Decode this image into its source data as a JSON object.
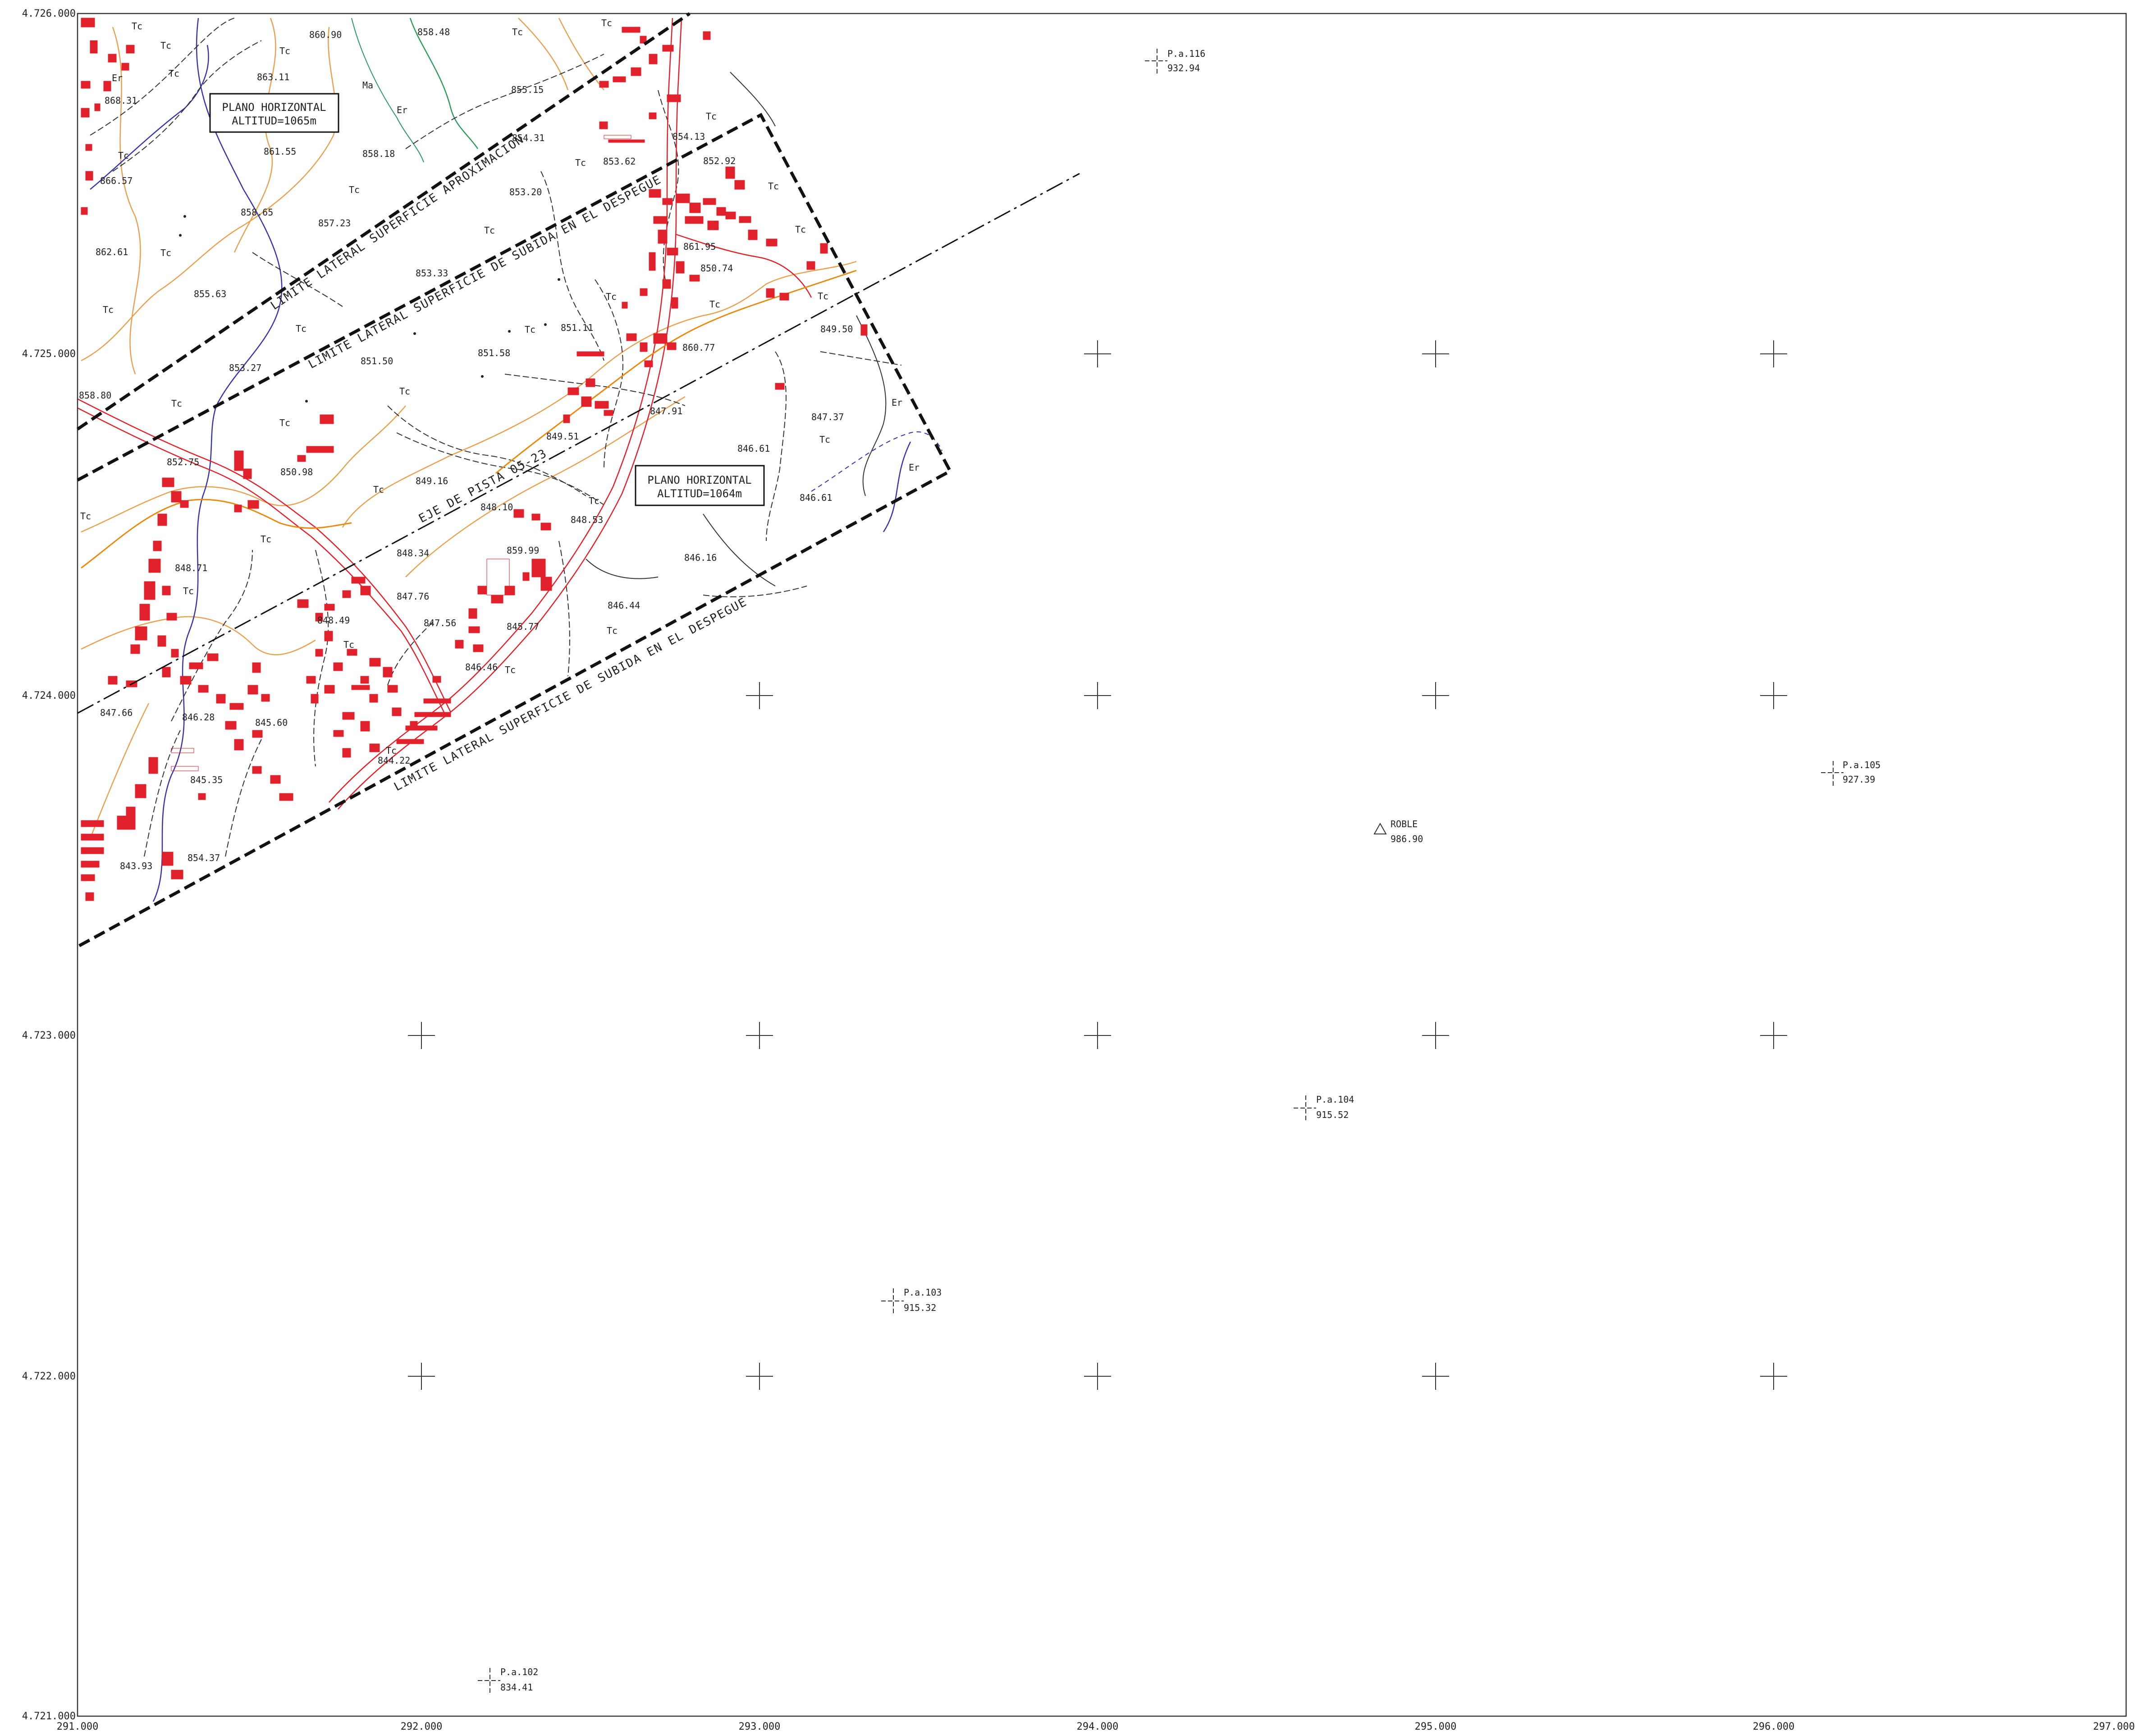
{
  "axes": {
    "x_ticks": [
      "291.000",
      "292.000",
      "293.000",
      "294.000",
      "295.000",
      "296.000",
      "297.000"
    ],
    "y_ticks": [
      "4.726.000",
      "4.725.000",
      "4.724.000",
      "4.723.000",
      "4.722.000",
      "4.721.000"
    ]
  },
  "plane_boxes": [
    {
      "line1": "PLANO HORIZONTAL",
      "line2": "ALTITUD=1065m"
    },
    {
      "line1": "PLANO HORIZONTAL",
      "line2": "ALTITUD=1064m"
    }
  ],
  "surface_labels": {
    "approach": "LIMITE LATERAL SUPERFICIE APROXIMACION",
    "takeoff_upper": "LIMITE LATERAL SUPERFICIE DE SUBIDA EN EL DESPEGUE",
    "takeoff_lower": "LIMITE LATERAL SUPERFICIE DE SUBIDA EN EL DESPEGUE",
    "runway_axis": "EJE DE PISTA 05-23"
  },
  "survey_points": [
    {
      "name": "P.a.116",
      "elev": "932.94"
    },
    {
      "name": "P.a.105",
      "elev": "927.39"
    },
    {
      "name": "ROBLE",
      "elev": "986.90"
    },
    {
      "name": "P.a.104",
      "elev": "915.52"
    },
    {
      "name": "P.a.103",
      "elev": "915.32"
    },
    {
      "name": "P.a.102",
      "elev": "834.41"
    }
  ],
  "spot_heights": [
    "860.90",
    "858.48",
    "863.11",
    "855.15",
    "868.31",
    "861.55",
    "858.18",
    "854.31",
    "854.13",
    "853.62",
    "852.92",
    "866.57",
    "858.65",
    "853.20",
    "857.23",
    "862.61",
    "861.95",
    "850.74",
    "855.63",
    "853.33",
    "851.11",
    "849.50",
    "851.58",
    "851.50",
    "853.27",
    "860.77",
    "858.80",
    "847.91",
    "847.37",
    "846.61",
    "852.75",
    "850.98",
    "849.16",
    "846.61",
    "849.51",
    "848.10",
    "848.53",
    "848.71",
    "848.34",
    "859.99",
    "846.16",
    "847.76",
    "847.56",
    "846.44",
    "848.49",
    "845.77",
    "846.46",
    "847.66",
    "846.28",
    "845.60",
    "845.35",
    "843.93",
    "854.37",
    "844.22"
  ],
  "soil_codes": [
    "Tc",
    "Er",
    "Ma"
  ],
  "colors": {
    "buildings": "#e0202a",
    "contours": "#e8a050",
    "streams": "#3333aa",
    "green_line": "#2a9a5a",
    "roads": "#333333",
    "road_red": "#e0202a",
    "frame": "#333333",
    "limits": "#111111"
  }
}
